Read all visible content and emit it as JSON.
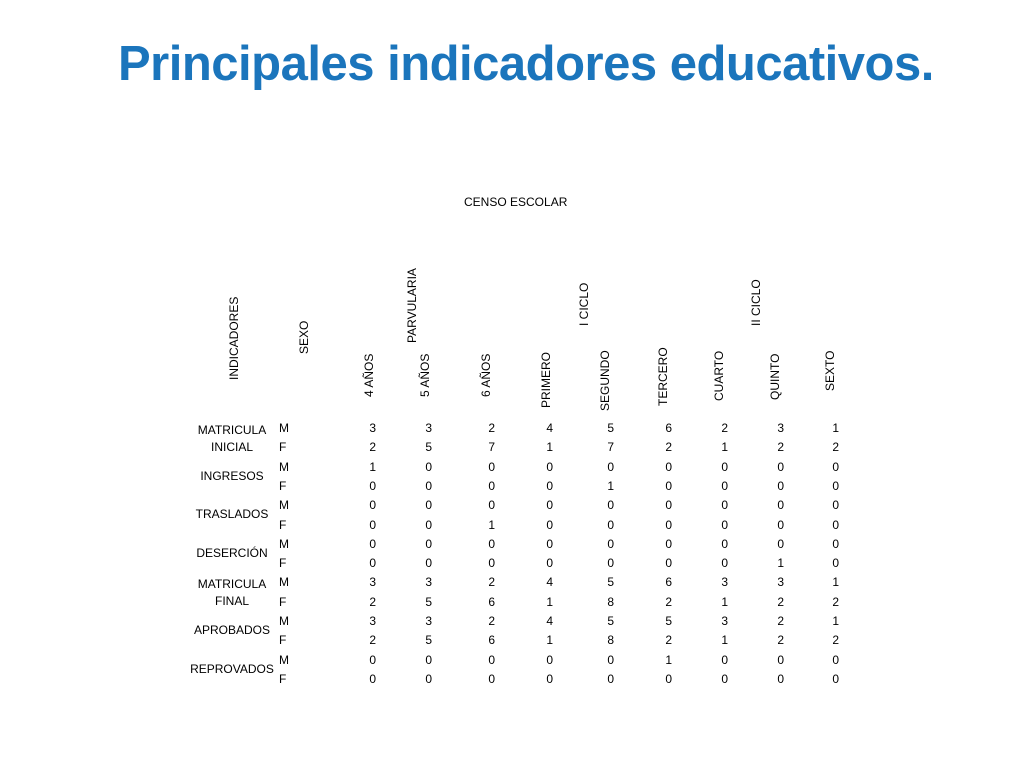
{
  "title": "Principales indicadores educativos.",
  "table": {
    "caption": "CENSO ESCOLAR",
    "header_indicadores": "INDICADORES",
    "header_sexo": "SEXO",
    "groups": [
      "PARVULARIA",
      "I CICLO",
      "II CICLO"
    ],
    "columns": [
      "4 AÑOS",
      "5 AÑOS",
      "6 AÑOS",
      "PRIMERO",
      "SEGUNDO",
      "TERCERO",
      "CUARTO",
      "QUINTO",
      "SEXTO"
    ],
    "indicators": [
      {
        "label": "MATRICULA\nINICIAL",
        "rows": [
          {
            "sex": "M",
            "values": [
              3,
              3,
              2,
              4,
              5,
              6,
              2,
              3,
              1
            ]
          },
          {
            "sex": "F",
            "values": [
              2,
              5,
              7,
              1,
              7,
              2,
              1,
              2,
              2
            ]
          }
        ]
      },
      {
        "label": "INGRESOS",
        "rows": [
          {
            "sex": "M",
            "values": [
              1,
              0,
              0,
              0,
              0,
              0,
              0,
              0,
              0
            ]
          },
          {
            "sex": "F",
            "values": [
              0,
              0,
              0,
              0,
              1,
              0,
              0,
              0,
              0
            ]
          }
        ]
      },
      {
        "label": "TRASLADOS",
        "rows": [
          {
            "sex": "M",
            "values": [
              0,
              0,
              0,
              0,
              0,
              0,
              0,
              0,
              0
            ]
          },
          {
            "sex": "F",
            "values": [
              0,
              0,
              1,
              0,
              0,
              0,
              0,
              0,
              0
            ]
          }
        ]
      },
      {
        "label": "DESERCIÓN",
        "rows": [
          {
            "sex": "M",
            "values": [
              0,
              0,
              0,
              0,
              0,
              0,
              0,
              0,
              0
            ]
          },
          {
            "sex": "F",
            "values": [
              0,
              0,
              0,
              0,
              0,
              0,
              0,
              1,
              0
            ]
          }
        ]
      },
      {
        "label": "MATRICULA\nFINAL",
        "rows": [
          {
            "sex": "M",
            "values": [
              3,
              3,
              2,
              4,
              5,
              6,
              3,
              3,
              1
            ]
          },
          {
            "sex": "F",
            "values": [
              2,
              5,
              6,
              1,
              8,
              2,
              1,
              2,
              2
            ]
          }
        ]
      },
      {
        "label": "APROBADOS",
        "rows": [
          {
            "sex": "M",
            "values": [
              3,
              3,
              2,
              4,
              5,
              5,
              3,
              2,
              1
            ]
          },
          {
            "sex": "F",
            "values": [
              2,
              5,
              6,
              1,
              8,
              2,
              1,
              2,
              2
            ]
          }
        ]
      },
      {
        "label": "REPROVADOS",
        "rows": [
          {
            "sex": "M",
            "values": [
              0,
              0,
              0,
              0,
              0,
              1,
              0,
              0,
              0
            ]
          },
          {
            "sex": "F",
            "values": [
              0,
              0,
              0,
              0,
              0,
              0,
              0,
              0,
              0
            ]
          }
        ]
      }
    ]
  }
}
